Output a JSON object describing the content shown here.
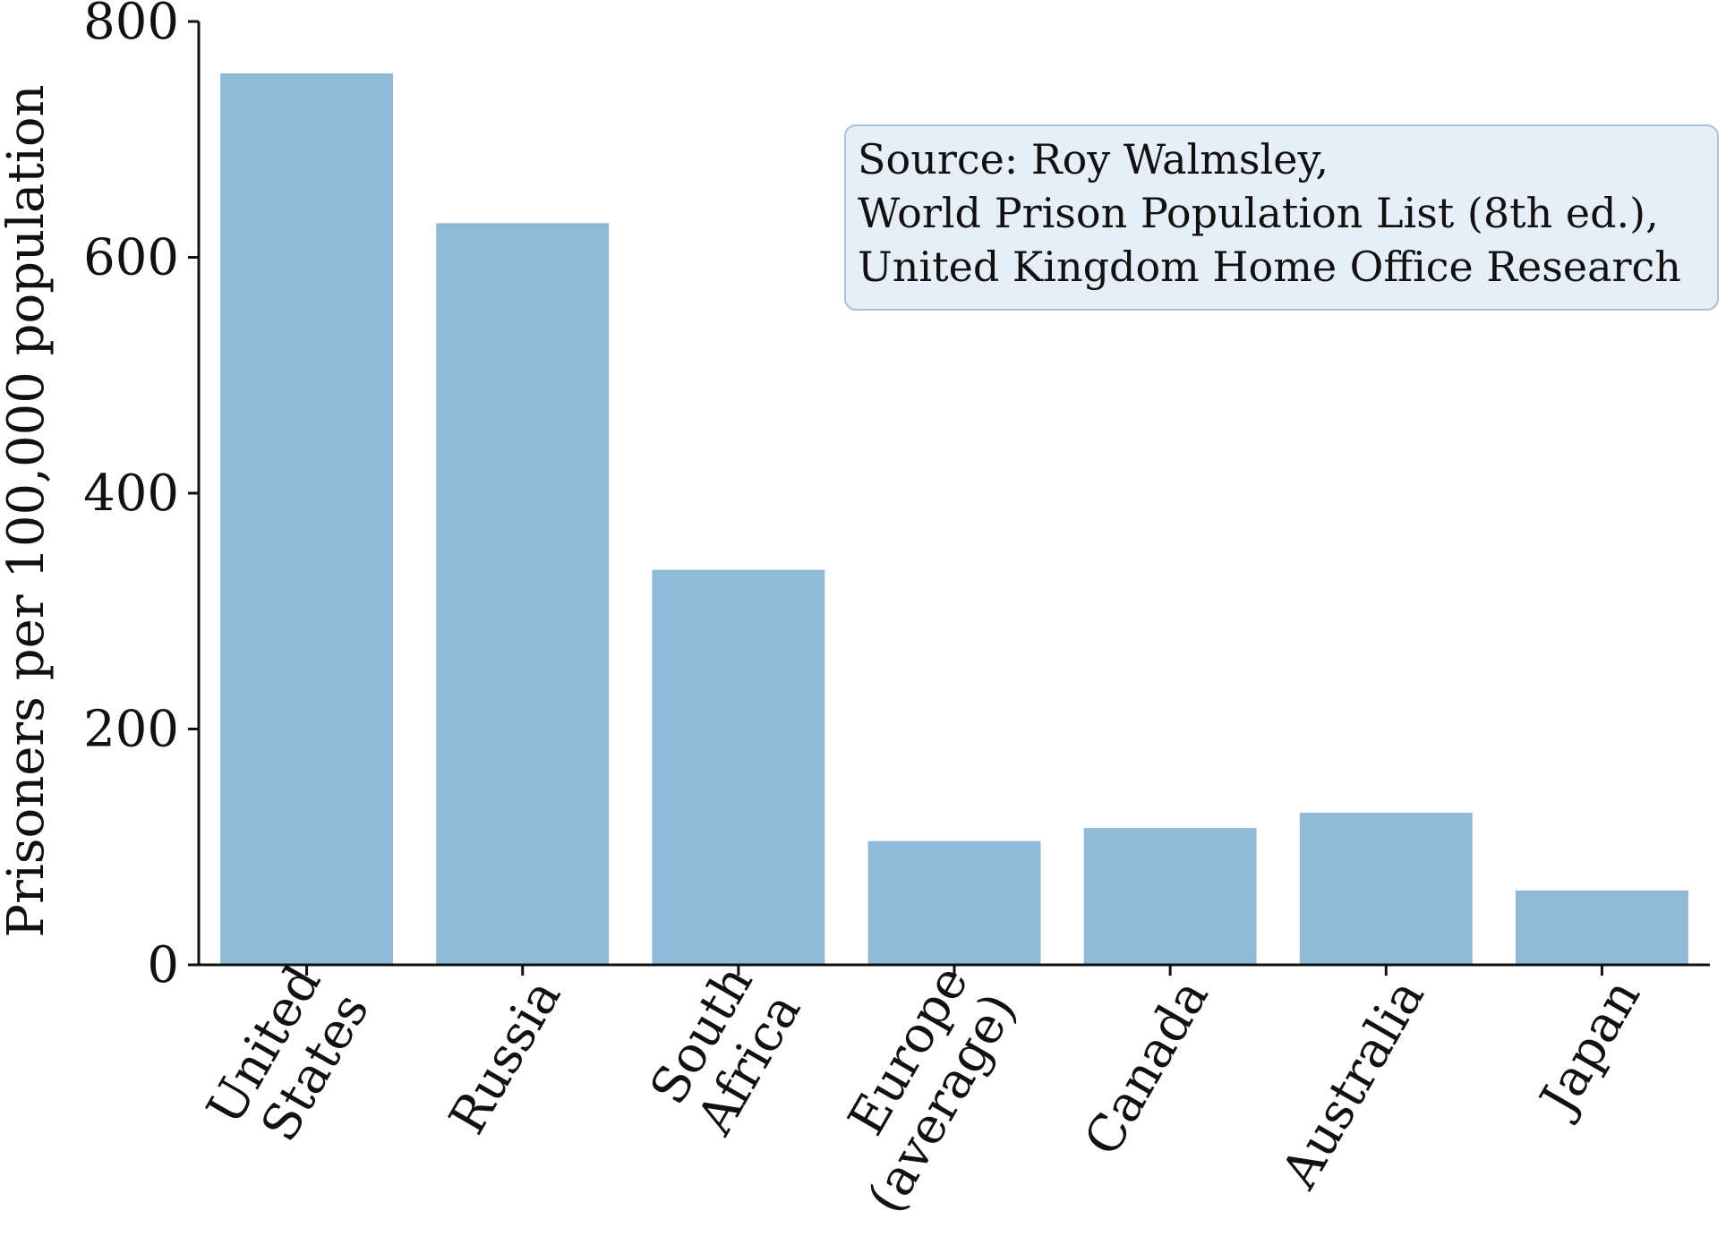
{
  "chart_data": {
    "type": "bar",
    "title": "",
    "xlabel": "",
    "ylabel": "Prisoners per 100,000 population",
    "ylim": [
      0,
      800
    ],
    "yticks": [
      0,
      200,
      400,
      600,
      800
    ],
    "categories": [
      [
        "United",
        "States"
      ],
      [
        "Russia"
      ],
      [
        "South",
        "Africa"
      ],
      [
        "Europe",
        "(average)"
      ],
      [
        "Canada"
      ],
      [
        "Australia"
      ],
      [
        "Japan"
      ]
    ],
    "values": [
      756,
      629,
      335,
      105,
      116,
      129,
      63
    ],
    "bar_color": "#90b9d8",
    "grid": false,
    "annotation": {
      "lines": [
        "Source: Roy Walmsley,",
        "World Prison Population List (8th ed.),",
        "United Kingdom Home Office Research"
      ],
      "background": "#e6eff7",
      "border": "#a9c2d6"
    }
  }
}
